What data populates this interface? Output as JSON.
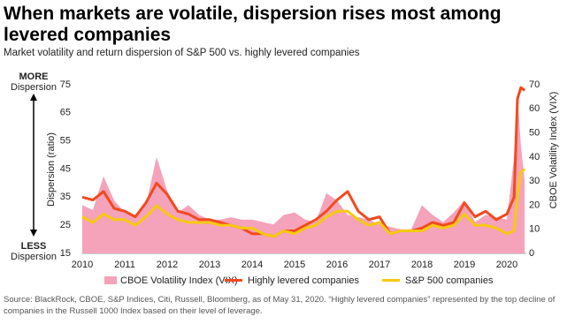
{
  "chart_data": {
    "type": "area_line",
    "title": "When markets are volatile, dispersion rises most among levered companies",
    "subtitle": "Market volatility and return dispersion of S&P 500 vs. highly levered companies",
    "y_label": "Dispersion (ratio)",
    "y2_label": "CBOE Volatility Index (VIX)",
    "annotations": [
      "MORE",
      "Dispersion",
      "LESS",
      "Dispersion"
    ],
    "source": "Source: BlackRock, CBOE, S&P Indices, Citi, Russell, Bloomberg, as of May 31, 2020. “Highly levered companies” represented by the top decline of companies in the Russell 1000 Index based on their level of leverage.",
    "x": [
      2010,
      2010.25,
      2010.5,
      2010.75,
      2011,
      2011.25,
      2011.5,
      2011.75,
      2012,
      2012.25,
      2012.5,
      2012.75,
      2013,
      2013.25,
      2013.5,
      2013.75,
      2014,
      2014.25,
      2014.5,
      2014.75,
      2015,
      2015.25,
      2015.5,
      2015.75,
      2016,
      2016.25,
      2016.5,
      2016.75,
      2017,
      2017.25,
      2017.5,
      2017.75,
      2018,
      2018.25,
      2018.5,
      2018.75,
      2019,
      2019.25,
      2019.5,
      2019.75,
      2020,
      2020.17,
      2020.25,
      2020.33,
      2020.42
    ],
    "xlim": [
      2010,
      2020.45
    ],
    "xticks": [
      2010,
      2011,
      2012,
      2013,
      2014,
      2015,
      2016,
      2017,
      2018,
      2019,
      2020
    ],
    "ylim": [
      15,
      75
    ],
    "yticks": [
      15,
      25,
      35,
      45,
      55,
      65,
      75
    ],
    "y2lim": [
      0,
      70
    ],
    "y2ticks": [
      0,
      10,
      20,
      30,
      40,
      50,
      60,
      70
    ],
    "series": [
      {
        "name": "CBOE Volatility Index (VIX)",
        "color": "#f4a3bb",
        "axis": "y2",
        "kind": "area",
        "values": [
          20,
          18,
          32,
          22,
          17,
          16,
          20,
          40,
          26,
          17,
          20,
          16,
          14,
          14,
          15,
          14,
          14,
          13,
          12,
          16,
          17,
          14,
          13,
          25,
          22,
          16,
          15,
          14,
          12,
          11,
          10,
          10,
          20,
          16,
          13,
          17,
          22,
          13,
          16,
          15,
          14,
          40,
          66,
          45,
          30
        ]
      },
      {
        "name": "Highly levered companies",
        "color": "#f24a1e",
        "kind": "line",
        "values": [
          35,
          34,
          37,
          31,
          30,
          28,
          33,
          40,
          36,
          30,
          29,
          27,
          27,
          26,
          25,
          24,
          22,
          22,
          21,
          23,
          23,
          25,
          27,
          30,
          34,
          37,
          30,
          27,
          28,
          22,
          23,
          23,
          24,
          26,
          25,
          26,
          33,
          28,
          30,
          27,
          29,
          35,
          70,
          74,
          73
        ]
      },
      {
        "name": "S&P 500 companies",
        "color": "#f7c90e",
        "kind": "line",
        "values": [
          28,
          26,
          29,
          27,
          27,
          25,
          28,
          32,
          29,
          27,
          26,
          26,
          26,
          25,
          25,
          24,
          24,
          22,
          21,
          23,
          22,
          24,
          25,
          28,
          30,
          30,
          27,
          25,
          26,
          22,
          23,
          23,
          23,
          25,
          24,
          25,
          29,
          25,
          25,
          24,
          22,
          23,
          35,
          44,
          45
        ]
      }
    ]
  }
}
